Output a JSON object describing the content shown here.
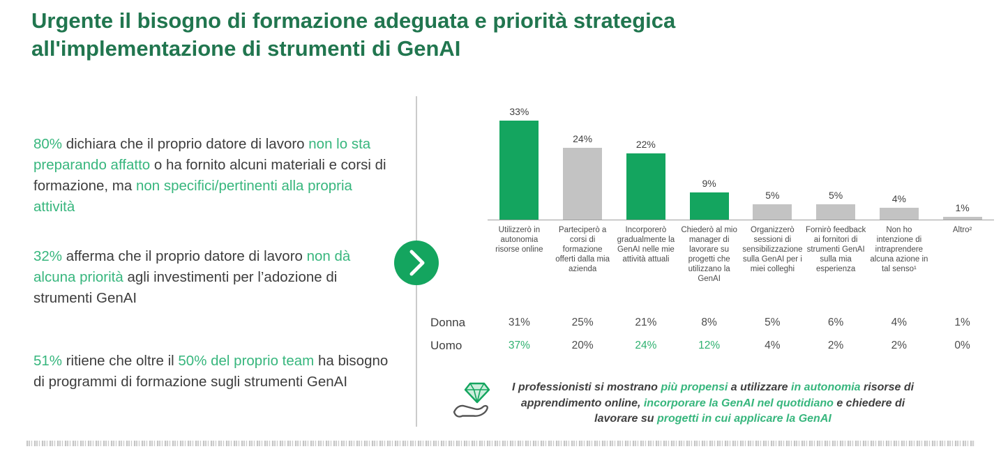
{
  "title": "Urgente il bisogno di formazione adeguata e priorità strategica all'implementazione di strumenti di GenAI",
  "colors": {
    "title_green": "#21764f",
    "accent_green": "#14a55f",
    "highlight_green": "#37b67d",
    "table_green": "#2fb170",
    "bar_gray": "#c3c3c3",
    "text_dark": "#3d3d3d"
  },
  "left_stats": [
    {
      "segments": [
        {
          "t": "80%",
          "g": true
        },
        {
          "t": " dichiara che il proprio datore di lavoro ",
          "g": false
        },
        {
          "t": "non lo sta preparando affatto",
          "g": true
        },
        {
          "t": " o ha fornito alcuni materiali e corsi di formazione, ma ",
          "g": false
        },
        {
          "t": "non specifici/pertinenti alla propria attività",
          "g": true
        }
      ]
    },
    {
      "segments": [
        {
          "t": "32%",
          "g": true
        },
        {
          "t": " afferma che il proprio datore di lavoro ",
          "g": false
        },
        {
          "t": "non dà alcuna priorità",
          "g": true
        },
        {
          "t": " agli investimenti per l’adozione di strumenti GenAI",
          "g": false
        }
      ]
    },
    {
      "segments": [
        {
          "t": "51%",
          "g": true
        },
        {
          "t": " ritiene che oltre il ",
          "g": false
        },
        {
          "t": "50% del proprio team",
          "g": true
        },
        {
          "t": " ha bisogno di programmi di formazione sugli strumenti GenAI",
          "g": false
        }
      ]
    }
  ],
  "chart_data": {
    "type": "bar",
    "unit": "%",
    "categories": [
      "Utilizzerò in autonomia risorse online",
      "Parteciperò a corsi di formazione offerti dalla mia azienda",
      "Incorporerò gradualmente la GenAI nelle mie attività attuali",
      "Chiederò al mio manager di lavorare su progetti che utilizzano la GenAI",
      "Organizzerò sessioni di sensibilizzazione sulla GenAI per i miei colleghi",
      "Fornirò feedback ai fornitori di strumenti GenAI sulla mia esperienza",
      "Non ho intenzione di intraprendere alcuna azione in tal senso¹",
      "Altro²"
    ],
    "values": [
      33,
      24,
      22,
      9,
      5,
      5,
      4,
      1
    ],
    "value_labels": [
      "33%",
      "24%",
      "22%",
      "9%",
      "5%",
      "5%",
      "4%",
      "1%"
    ],
    "bar_colors": [
      "green",
      "gray",
      "green",
      "green",
      "gray",
      "gray",
      "gray",
      "gray"
    ],
    "ylim": [
      0,
      35
    ],
    "grid": false,
    "legend": "none",
    "xlabel": "",
    "ylabel": "",
    "table_series": [
      {
        "name": "Donna",
        "values": [
          "31%",
          "25%",
          "21%",
          "8%",
          "5%",
          "6%",
          "4%",
          "1%"
        ],
        "green_indexes": []
      },
      {
        "name": "Uomo",
        "values": [
          "37%",
          "20%",
          "24%",
          "12%",
          "4%",
          "2%",
          "2%",
          "0%"
        ],
        "green_indexes": [
          0,
          2,
          3
        ]
      }
    ]
  },
  "note": {
    "segments": [
      {
        "t": "I professionisti si mostrano ",
        "g": false
      },
      {
        "t": "più propensi",
        "g": true
      },
      {
        "t": " a utilizzare ",
        "g": false
      },
      {
        "t": "in autonomia",
        "g": true
      },
      {
        "t": " risorse di apprendimento online, ",
        "g": false
      },
      {
        "t": "incorporare la GenAI nel quotidiano",
        "g": true
      },
      {
        "t": " e chiedere di lavorare su ",
        "g": false
      },
      {
        "t": "progetti in cui applicare la GenAI",
        "g": true
      }
    ]
  }
}
